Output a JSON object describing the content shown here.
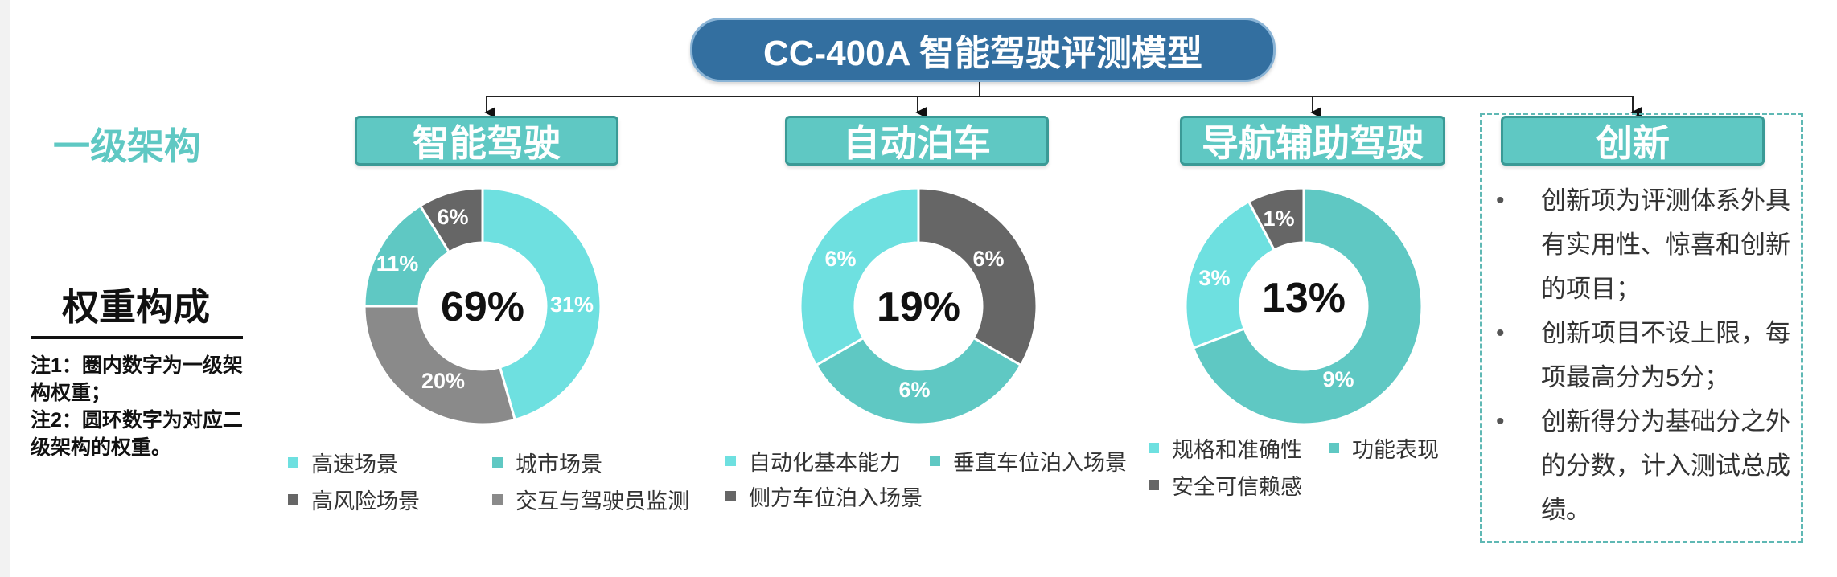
{
  "title": "CC-400A 智能驾驶评测模型",
  "tier_label": "一级架构",
  "weight": {
    "title": "权重构成",
    "note1": "注1：圈内数字为一级架构权重；",
    "note2": "注2：圆环数字为对应二级架构的权重。"
  },
  "colors": {
    "title_bg": "#336fa0",
    "teal_box": "#5fc8c3",
    "light_teal": "#6ee0e0",
    "mid_teal": "#5fc8c3",
    "dark_gray": "#666666",
    "mid_gray": "#8a8a8a"
  },
  "categories": [
    {
      "name": "智能驾驶",
      "center": "69%",
      "segments": [
        {
          "label": "31%",
          "value": 31,
          "color": "#6ee0e0"
        },
        {
          "label": "20%",
          "value": 20,
          "color": "#8a8a8a"
        },
        {
          "label": "11%",
          "value": 11,
          "color": "#5fc8c3"
        },
        {
          "label": "6%",
          "value": 6,
          "color": "#666666"
        }
      ],
      "legend": [
        {
          "text": "高速场景",
          "color": "#6ee0e0"
        },
        {
          "text": "城市场景",
          "color": "#5fc8c3"
        },
        {
          "text": "高风险场景",
          "color": "#666666"
        },
        {
          "text": "交互与驾驶员监测",
          "color": "#8a8a8a"
        }
      ]
    },
    {
      "name": "自动泊车",
      "center": "19%",
      "segments": [
        {
          "label": "6%",
          "value": 6,
          "color": "#666666"
        },
        {
          "label": "6%",
          "value": 6,
          "color": "#5fc8c3"
        },
        {
          "label": "6%",
          "value": 6,
          "color": "#6ee0e0"
        }
      ],
      "legend": [
        {
          "text": "自动化基本能力",
          "color": "#6ee0e0"
        },
        {
          "text": "垂直车位泊入场景",
          "color": "#5fc8c3"
        },
        {
          "text": "侧方车位泊入场景",
          "color": "#666666"
        }
      ]
    },
    {
      "name": "导航辅助驾驶",
      "center": "13%",
      "segments": [
        {
          "label": "9%",
          "value": 9,
          "color": "#5fc8c3"
        },
        {
          "label": "3%",
          "value": 3,
          "color": "#6ee0e0"
        },
        {
          "label": "1%",
          "value": 1,
          "color": "#666666"
        }
      ],
      "legend": [
        {
          "text": "规格和准确性",
          "color": "#6ee0e0"
        },
        {
          "text": "功能表现",
          "color": "#5fc8c3"
        },
        {
          "text": "安全可信赖感",
          "color": "#666666"
        }
      ]
    }
  ],
  "innovation": {
    "name": "创新",
    "items": [
      "创新项为评测体系外具有实用性、惊喜和创新的项目；",
      "创新项目不设上限，每项最高分为5分；",
      "创新得分为基础分之外的分数，计入测试总成绩。"
    ]
  }
}
